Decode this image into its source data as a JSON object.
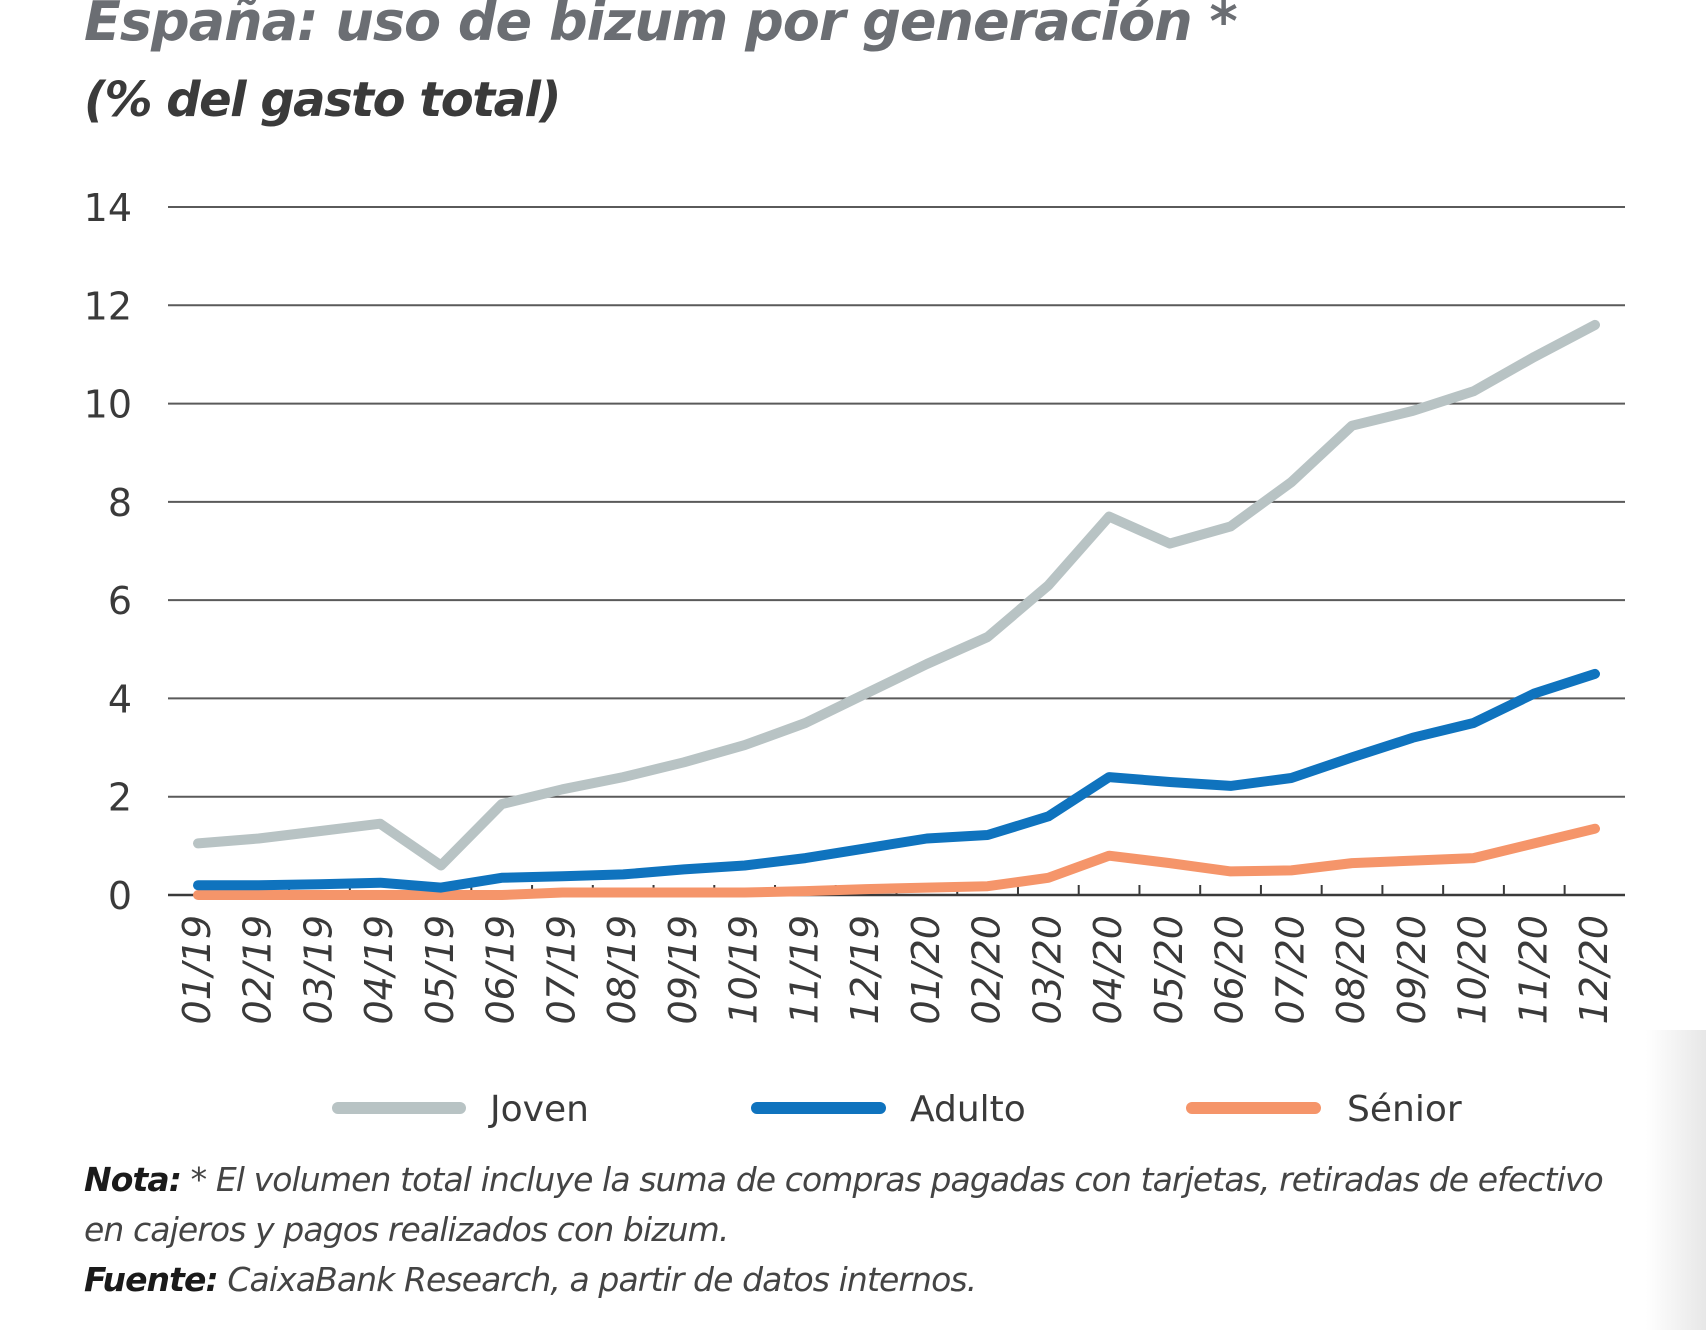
{
  "chart_data": {
    "type": "line",
    "title": "España: uso de bizum por generación *",
    "subtitle": "(% del gasto total)",
    "xlabel": "",
    "ylabel": "",
    "categories": [
      "01/19",
      "02/19",
      "03/19",
      "04/19",
      "05/19",
      "06/19",
      "07/19",
      "08/19",
      "09/19",
      "10/19",
      "11/19",
      "12/19",
      "01/20",
      "02/20",
      "03/20",
      "04/20",
      "05/20",
      "06/20",
      "07/20",
      "08/20",
      "09/20",
      "10/20",
      "11/20",
      "12/20"
    ],
    "yticks": [
      "0",
      "2",
      "4",
      "6",
      "8",
      "10",
      "12",
      "14"
    ],
    "ylim": [
      0,
      14
    ],
    "grid": true,
    "legend_position": "bottom",
    "series": [
      {
        "name": "Joven",
        "color": "#b8c3c4",
        "values": [
          1.05,
          1.15,
          1.3,
          1.45,
          0.6,
          1.85,
          2.15,
          2.4,
          2.7,
          3.05,
          3.5,
          4.1,
          4.7,
          5.25,
          6.3,
          7.7,
          7.15,
          7.5,
          8.4,
          9.55,
          9.85,
          10.25,
          10.95,
          11.6
        ]
      },
      {
        "name": "Adulto",
        "color": "#0f73be",
        "values": [
          0.2,
          0.2,
          0.22,
          0.25,
          0.15,
          0.35,
          0.38,
          0.42,
          0.52,
          0.6,
          0.75,
          0.95,
          1.15,
          1.22,
          1.6,
          2.4,
          2.3,
          2.22,
          2.38,
          2.8,
          3.2,
          3.5,
          4.1,
          4.5
        ]
      },
      {
        "name": "Sénior",
        "color": "#f5956a",
        "values": [
          0.0,
          0.0,
          0.0,
          0.0,
          0.0,
          0.0,
          0.05,
          0.05,
          0.05,
          0.05,
          0.08,
          0.12,
          0.15,
          0.18,
          0.35,
          0.8,
          0.65,
          0.48,
          0.5,
          0.65,
          0.7,
          0.75,
          1.05,
          1.35
        ]
      }
    ]
  },
  "footnote": {
    "nota_label": "Nota:",
    "nota_text_line1": "* El volumen total incluye la suma de compras pagadas con tarjetas, retiradas de efectivo",
    "nota_text_line2": "en cajeros y pagos realizados con bizum.",
    "fuente_label": "Fuente:",
    "fuente_text": "CaixaBank Research, a partir de datos internos."
  }
}
